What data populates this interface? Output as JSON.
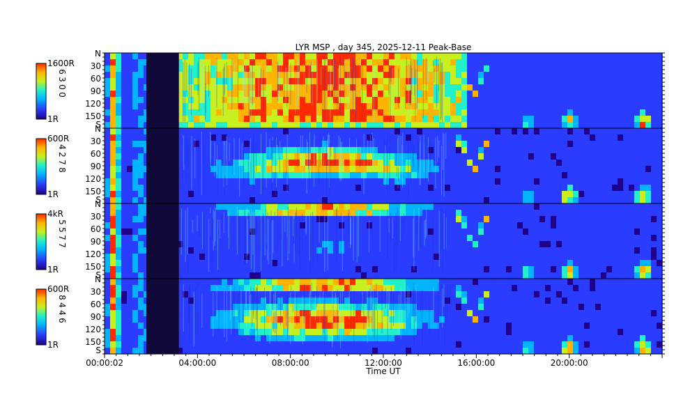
{
  "chart_data": {
    "type": "heatmap",
    "title": "LYR MSP , day 345, 2025-12-11 Peak-Base",
    "xlabel": "Time UT",
    "x_tick_labels": [
      "00:00:02",
      "04:00:00",
      "08:00:00",
      "12:00:00",
      "16:00:00",
      "20:00:00"
    ],
    "x_tick_hours": [
      0.0006,
      4,
      8,
      12,
      16,
      20
    ],
    "x_range_hours": [
      0,
      24
    ],
    "y_axis": {
      "top_label": "N",
      "bottom_label": "S",
      "range_deg": [
        0,
        180
      ],
      "tick_values": [
        30,
        60,
        90,
        120,
        150
      ],
      "tick_labels": [
        "30",
        "60",
        "90",
        "120",
        "150"
      ]
    },
    "data_gap_hours": [
      1.8,
      3.2
    ],
    "panels": [
      {
        "name": "panel-1",
        "scale_max": "1600R",
        "scale_min": "1R",
        "channel_digits": [
          "6",
          "3",
          "0",
          "0"
        ]
      },
      {
        "name": "panel-2",
        "scale_max": "600R",
        "scale_min": "1R",
        "channel_digits": [
          "4",
          "2",
          "7",
          "8"
        ]
      },
      {
        "name": "panel-3",
        "scale_max": "4kR",
        "scale_min": "1R",
        "channel_digits": [
          "5",
          "5",
          "7",
          "7"
        ]
      },
      {
        "name": "panel-4",
        "scale_max": "600R",
        "scale_min": "1R",
        "channel_digits": [
          "8",
          "4",
          "4",
          "6"
        ]
      }
    ],
    "colormap": [
      "#20008a",
      "#2a3cff",
      "#00b4ff",
      "#21f0c8",
      "#c8f01e",
      "#ffb400",
      "#ff2a00"
    ]
  }
}
